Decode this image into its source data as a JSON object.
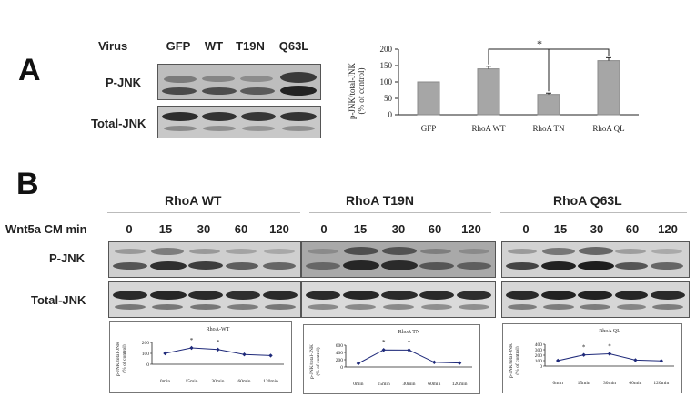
{
  "panelA": {
    "letter": "A",
    "virus_label": "Virus",
    "lanes": [
      "GFP",
      "WT",
      "T19N",
      "Q63L"
    ],
    "rows": [
      "P-JNK",
      "Total-JNK"
    ],
    "bar_chart": {
      "ylabel_line1": "p-JNK/total-JNK",
      "ylabel_line2": "(% of control)",
      "significance": "*"
    }
  },
  "panelB": {
    "letter": "B",
    "treatment_label": "Wnt5a CM  min",
    "groups": [
      {
        "title": "RhoA WT",
        "timepoints": [
          "0",
          "15",
          "30",
          "60",
          "120"
        ]
      },
      {
        "title": "RhoA T19N",
        "timepoints": [
          "0",
          "15",
          "30",
          "60",
          "120"
        ]
      },
      {
        "title": "RhoA Q63L",
        "timepoints": [
          "0",
          "15",
          "30",
          "60",
          "120"
        ]
      }
    ],
    "rows": [
      "P-JNK",
      "Total-JNK"
    ]
  },
  "chart_data": [
    {
      "type": "bar",
      "categories": [
        "GFP",
        "RhoA WT",
        "RhoA TN",
        "RhoA QL"
      ],
      "values": [
        100,
        140,
        62,
        165
      ],
      "errors": [
        0,
        8,
        4,
        9
      ],
      "ylim": [
        0,
        200
      ],
      "yticks": [
        "0",
        "50",
        "100",
        "150",
        "200"
      ],
      "grid": false,
      "significance": {
        "pairs": [
          [
            "RhoA WT",
            "RhoA QL"
          ],
          [
            "RhoA TN"
          ]
        ],
        "symbol": "*"
      }
    },
    {
      "type": "line",
      "title": "RhoA-WT",
      "categories": [
        "0min",
        "15min",
        "30min",
        "60min",
        "120min"
      ],
      "values": [
        100,
        150,
        135,
        90,
        80
      ],
      "ylim": [
        0,
        200
      ],
      "yticks": [
        "0",
        "100",
        "200"
      ],
      "ylabel_line1": "p-JNK/total-JNK",
      "ylabel_line2": "(% of control)",
      "star_at": [
        "15min",
        "30min"
      ],
      "star": "*"
    },
    {
      "type": "line",
      "title": "RhoA TN",
      "categories": [
        "0min",
        "15min",
        "30min",
        "60min",
        "120min"
      ],
      "values": [
        100,
        470,
        465,
        130,
        110
      ],
      "ylim": [
        0,
        600
      ],
      "yticks": [
        "0",
        "200",
        "400",
        "600"
      ],
      "ylabel_line1": "p-JNK/total-JNK",
      "ylabel_line2": "(% of control)",
      "star_at": [
        "15min",
        "30min"
      ],
      "star": "*"
    },
    {
      "type": "line",
      "title": "RhoA QL",
      "categories": [
        "0min",
        "15min",
        "30min",
        "60min",
        "120min"
      ],
      "values": [
        100,
        205,
        225,
        110,
        95
      ],
      "ylim": [
        0,
        400
      ],
      "yticks": [
        "0",
        "100",
        "200",
        "300",
        "400"
      ],
      "ylabel_line1": "p-JNK/total-JNK",
      "ylabel_line2": "(% of control)",
      "star_at": [
        "15min",
        "30min"
      ],
      "star": "*"
    }
  ]
}
